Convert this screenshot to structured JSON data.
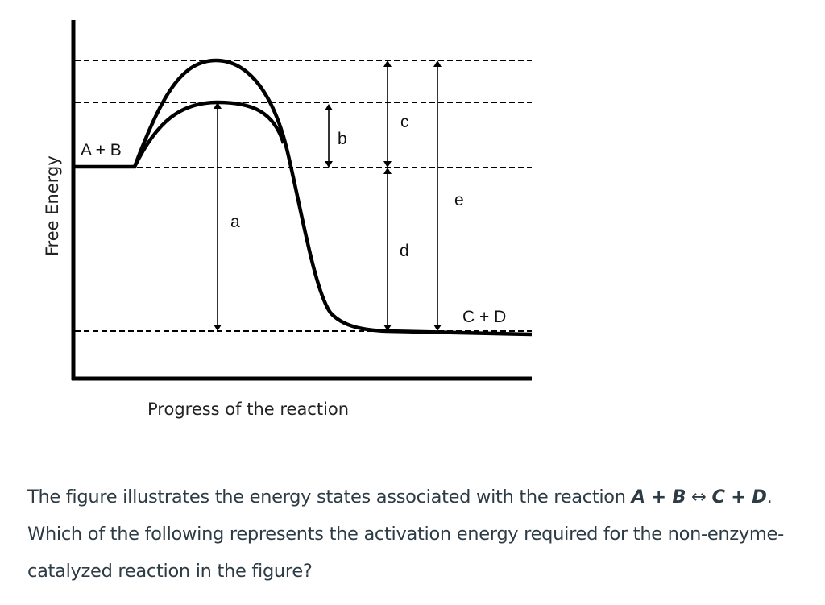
{
  "diagram": {
    "y_axis_label": "Free Energy",
    "x_axis_label": "Progress of the reaction",
    "reactants_label": "A + B",
    "products_label": "C + D",
    "arrow_labels": {
      "a": "a",
      "b": "b",
      "c": "c",
      "d": "d",
      "e": "e"
    }
  },
  "question": {
    "part1": "The figure illustrates the energy states associated with the reaction ",
    "reaction_left": "A + B",
    "arrow": " ↔ ",
    "reaction_right": "C + D",
    "part2": ". Which of the following represents the activation energy required for the non-enzyme-catalyzed reaction in the figure?"
  }
}
